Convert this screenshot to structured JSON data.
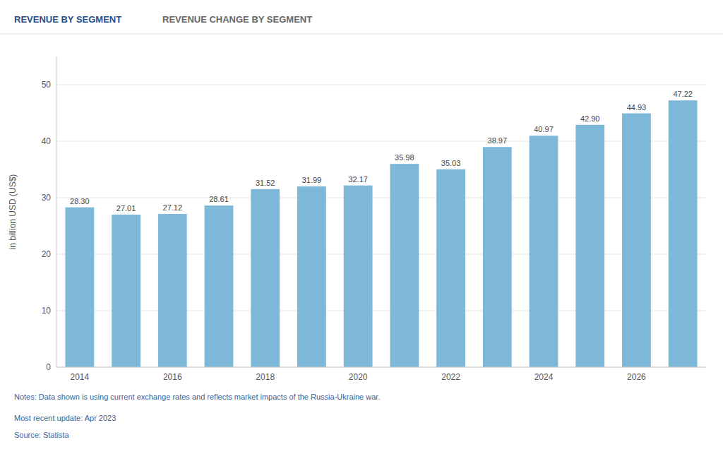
{
  "chart_data": {
    "type": "bar",
    "title": "REVENUE BY SEGMENT",
    "subtitle": "REVENUE CHANGE BY SEGMENT",
    "y_label": "in billion USD (US$)",
    "categories": [
      "2014",
      null,
      "2016",
      null,
      "2018",
      null,
      "2020",
      null,
      "2022",
      null,
      "2024",
      null,
      "2026",
      null
    ],
    "values": [
      28.3,
      27.01,
      27.12,
      28.61,
      31.52,
      31.99,
      32.17,
      35.98,
      35.03,
      38.97,
      40.97,
      42.9,
      44.93,
      47.22
    ],
    "value_labels": [
      "28.30",
      "27.01",
      "27.12",
      "28.61",
      "31.52",
      "31.99",
      "32.17",
      "35.98",
      "35.03",
      "38.97",
      "40.97",
      "42.90",
      "44.93",
      "47.22"
    ],
    "data_labels": true,
    "color": "#7DB8D8",
    "ylim": [
      0,
      55
    ],
    "yticks": [
      0,
      10,
      20,
      30,
      40,
      50
    ],
    "grid": true,
    "annotations": [
      "Notes: Data shown is using current exchange rates and reflects market impacts of the Russia-Ukraine war.",
      "Most recent update: Apr 2023",
      "Source: Statista"
    ]
  }
}
